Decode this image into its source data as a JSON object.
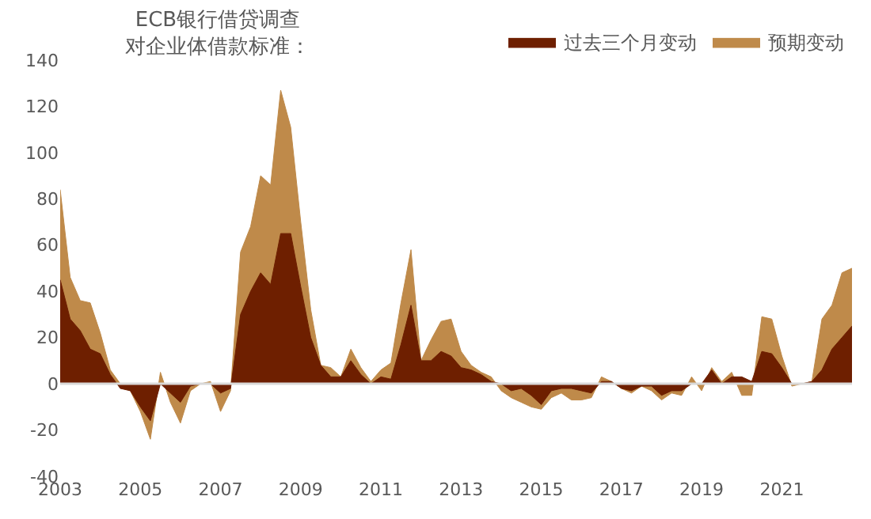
{
  "chart_data": {
    "type": "area",
    "title": "ECB银行借贷调查对企业体借款标准：",
    "x": [
      2003,
      2003.25,
      2003.5,
      2003.75,
      2004,
      2004.25,
      2004.5,
      2004.75,
      2005,
      2005.25,
      2005.5,
      2005.75,
      2006,
      2006.25,
      2006.5,
      2006.75,
      2007,
      2007.25,
      2007.5,
      2007.75,
      2008,
      2008.25,
      2008.5,
      2008.75,
      2009,
      2009.25,
      2009.5,
      2009.75,
      2010,
      2010.25,
      2010.5,
      2010.75,
      2011,
      2011.25,
      2011.5,
      2011.75,
      2012,
      2012.25,
      2012.5,
      2012.75,
      2013,
      2013.25,
      2013.5,
      2013.75,
      2014,
      2014.25,
      2014.5,
      2014.75,
      2015,
      2015.25,
      2015.5,
      2015.75,
      2016,
      2016.25,
      2016.5,
      2016.75,
      2017,
      2017.25,
      2017.5,
      2017.75,
      2018,
      2018.25,
      2018.5,
      2018.75,
      2019,
      2019.25,
      2019.5,
      2019.75,
      2020,
      2020.25,
      2020.5,
      2020.75,
      2021,
      2021.25,
      2021.5,
      2021.75,
      2022,
      2022.25,
      2022.5,
      2022.75
    ],
    "series": [
      {
        "name": "过去三个月变动",
        "color": "#6e1f00",
        "values": [
          45,
          28,
          23,
          15,
          13,
          4,
          -2,
          -3,
          -10,
          -16,
          0,
          -4,
          -8,
          -1,
          0,
          0,
          -4,
          -2,
          30,
          40,
          48,
          43,
          65,
          65,
          42,
          20,
          8,
          3,
          3,
          10,
          4,
          0,
          3,
          2,
          17,
          34,
          10,
          10,
          14,
          12,
          7,
          6,
          4,
          1,
          0,
          -3,
          -2,
          -5,
          -9,
          -3,
          -2,
          -2,
          -3,
          -4,
          1,
          1,
          -2,
          -3,
          -1,
          -1,
          -5,
          -3,
          -3,
          0,
          0,
          6,
          0,
          3,
          3,
          1,
          14,
          13,
          7,
          0,
          0,
          1,
          6,
          15,
          20,
          25
        ]
      },
      {
        "name": "预期变动",
        "color": "#bf8a4a",
        "values": [
          84,
          46,
          36,
          35,
          22,
          6,
          0,
          -3,
          -12,
          -24,
          5,
          -8,
          -17,
          -3,
          0,
          1,
          -12,
          -3,
          57,
          68,
          90,
          86,
          127,
          111,
          70,
          32,
          8,
          7,
          3,
          15,
          7,
          1,
          6,
          9,
          35,
          58,
          10,
          19,
          27,
          28,
          14,
          8,
          5,
          3,
          -3,
          -6,
          -8,
          -10,
          -11,
          -6,
          -4,
          -7,
          -7,
          -6,
          3,
          1,
          -2,
          -4,
          -1,
          -3,
          -7,
          -4,
          -5,
          3,
          -3,
          7,
          1,
          5,
          -5,
          -5,
          29,
          28,
          12,
          -1,
          0,
          1,
          28,
          34,
          48,
          50
        ]
      }
    ],
    "xlim": [
      2003,
      2022.75
    ],
    "xticks": [
      2003,
      2005,
      2007,
      2009,
      2011,
      2013,
      2015,
      2017,
      2019,
      2021
    ],
    "ylim": [
      -40,
      140
    ],
    "yticks": [
      -40,
      -20,
      0,
      20,
      40,
      60,
      80,
      100,
      120,
      140
    ],
    "ref_lines": [
      {
        "axis": "y",
        "value": 0,
        "color": "#d9d9d9"
      }
    ],
    "legend": "top right"
  }
}
